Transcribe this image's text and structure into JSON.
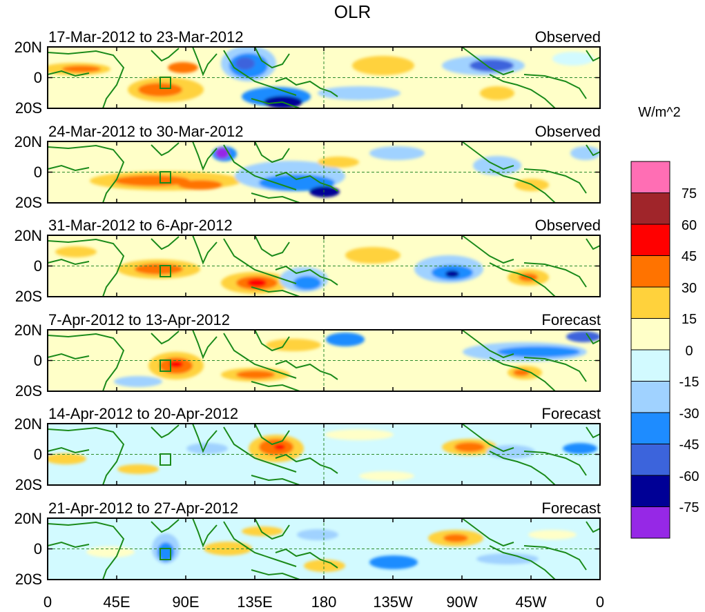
{
  "title": "OLR",
  "units": "W/m^2",
  "panels": [
    {
      "dates": "17-Mar-2012 to 23-Mar-2012",
      "kind": "Observed"
    },
    {
      "dates": "24-Mar-2012 to 30-Mar-2012",
      "kind": "Observed"
    },
    {
      "dates": "31-Mar-2012 to 6-Apr-2012",
      "kind": "Observed"
    },
    {
      "dates": "7-Apr-2012 to 13-Apr-2012",
      "kind": "Forecast"
    },
    {
      "dates": "14-Apr-2012 to 20-Apr-2012",
      "kind": "Forecast"
    },
    {
      "dates": "21-Apr-2012 to 27-Apr-2012",
      "kind": "Forecast"
    }
  ],
  "lat_labels": [
    "20N",
    "0",
    "20S"
  ],
  "lon_labels": [
    "0",
    "45E",
    "90E",
    "135E",
    "180",
    "135W",
    "90W",
    "45W",
    "0"
  ],
  "colorbar": {
    "labels": [
      "75",
      "60",
      "45",
      "30",
      "15",
      "0",
      "-15",
      "-30",
      "-45",
      "-60",
      "-75"
    ],
    "colors": [
      "#ff6eb4",
      "#a0252a",
      "#ff0000",
      "#ff7300",
      "#ffd23c",
      "#ffffc8",
      "#d2faff",
      "#a0d2ff",
      "#1e8cff",
      "#3c64dc",
      "#000096",
      "#9628e6"
    ]
  }
}
